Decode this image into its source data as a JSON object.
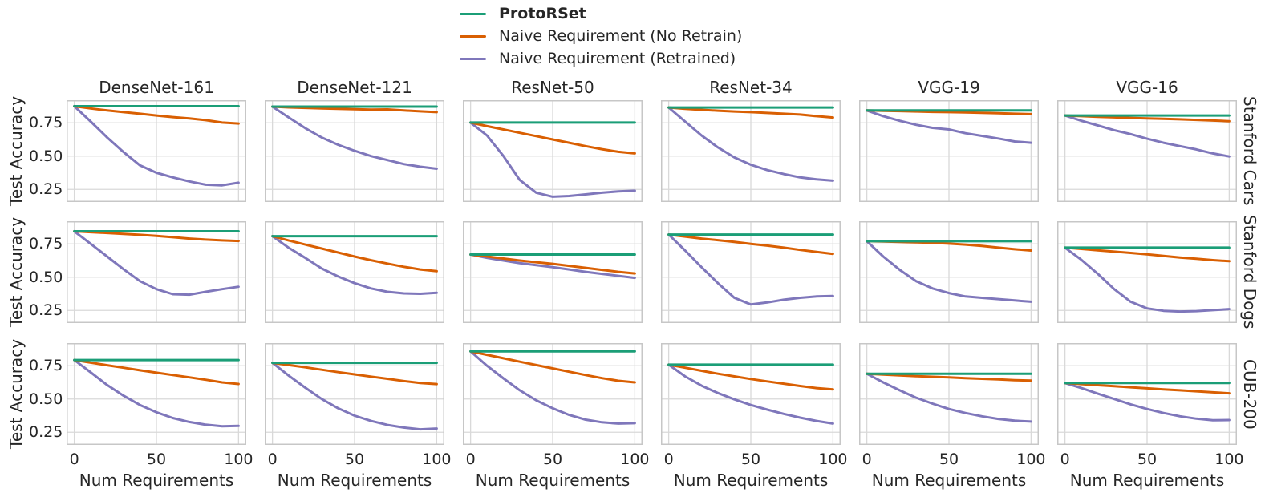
{
  "legend": {
    "items": [
      {
        "label": "ProtoRSet",
        "color": "#1b9e77",
        "bold": true
      },
      {
        "label": "Naive Requirement (No Retrain)",
        "color": "#d95f02",
        "bold": false
      },
      {
        "label": "Naive Requirement (Retrained)",
        "color": "#7f77bb",
        "bold": false
      }
    ]
  },
  "colors": {
    "protorset": "#1b9e77",
    "no_retrain": "#d95f02",
    "retrained": "#7f77bb",
    "gridline": "#d9d9d9",
    "spine": "#c7c7c7",
    "text": "#262626"
  },
  "chart_data": {
    "type": "line",
    "title": "",
    "xlabel": "Num Requirements",
    "ylabel": "Test Accuracy",
    "grid": true,
    "legend_position": "top-center",
    "rows": [
      "Stanford Cars",
      "Stanford Dogs",
      "CUB-200"
    ],
    "cols": [
      "DenseNet-161",
      "DenseNet-121",
      "ResNet-50",
      "ResNet-34",
      "VGG-19",
      "VGG-16"
    ],
    "series_names": [
      "ProtoRSet",
      "Naive Requirement (No Retrain)",
      "Naive Requirement (Retrained)"
    ],
    "xticks": [
      "0",
      "50",
      "100"
    ],
    "xtick_values": [
      0,
      50,
      100
    ],
    "yticks": [
      "0.75",
      "0.50",
      "0.25"
    ],
    "ytick_values": [
      0.75,
      0.5,
      0.25
    ],
    "xlim": [
      -4.7,
      104.7
    ],
    "ylim": [
      0.155,
      0.92
    ],
    "x": [
      0,
      10,
      20,
      30,
      40,
      50,
      60,
      70,
      80,
      90,
      100
    ],
    "subplots": [
      {
        "row": "Stanford Cars",
        "col": "DenseNet-161",
        "protorset": [
          0.875,
          0.875,
          0.875,
          0.875,
          0.875,
          0.875,
          0.875,
          0.875,
          0.875,
          0.875,
          0.875
        ],
        "no_retrain": [
          0.875,
          0.858,
          0.843,
          0.83,
          0.818,
          0.805,
          0.793,
          0.783,
          0.77,
          0.752,
          0.745
        ],
        "retrained": [
          0.875,
          0.76,
          0.64,
          0.53,
          0.43,
          0.375,
          0.34,
          0.31,
          0.285,
          0.28,
          0.3
        ]
      },
      {
        "row": "Stanford Cars",
        "col": "DenseNet-121",
        "protorset": [
          0.872,
          0.872,
          0.872,
          0.872,
          0.872,
          0.872,
          0.872,
          0.872,
          0.872,
          0.872,
          0.872
        ],
        "no_retrain": [
          0.872,
          0.866,
          0.862,
          0.858,
          0.855,
          0.852,
          0.849,
          0.851,
          0.843,
          0.836,
          0.83
        ],
        "retrained": [
          0.872,
          0.79,
          0.71,
          0.64,
          0.585,
          0.54,
          0.5,
          0.47,
          0.44,
          0.42,
          0.405
        ]
      },
      {
        "row": "Stanford Cars",
        "col": "ResNet-50",
        "protorset": [
          0.752,
          0.752,
          0.752,
          0.752,
          0.752,
          0.752,
          0.752,
          0.752,
          0.752,
          0.752,
          0.752
        ],
        "no_retrain": [
          0.752,
          0.725,
          0.7,
          0.675,
          0.65,
          0.625,
          0.6,
          0.575,
          0.552,
          0.532,
          0.52
        ],
        "retrained": [
          0.752,
          0.655,
          0.5,
          0.32,
          0.225,
          0.195,
          0.2,
          0.212,
          0.225,
          0.235,
          0.24
        ]
      },
      {
        "row": "Stanford Cars",
        "col": "ResNet-34",
        "protorset": [
          0.865,
          0.865,
          0.865,
          0.865,
          0.865,
          0.865,
          0.865,
          0.865,
          0.865,
          0.865,
          0.865
        ],
        "no_retrain": [
          0.865,
          0.855,
          0.848,
          0.841,
          0.835,
          0.83,
          0.824,
          0.818,
          0.812,
          0.8,
          0.79
        ],
        "retrained": [
          0.865,
          0.76,
          0.655,
          0.565,
          0.49,
          0.435,
          0.395,
          0.365,
          0.34,
          0.325,
          0.315
        ]
      },
      {
        "row": "Stanford Cars",
        "col": "VGG-19",
        "protorset": [
          0.843,
          0.843,
          0.843,
          0.843,
          0.843,
          0.843,
          0.843,
          0.843,
          0.843,
          0.843,
          0.843
        ],
        "no_retrain": [
          0.843,
          0.84,
          0.838,
          0.835,
          0.832,
          0.83,
          0.828,
          0.825,
          0.822,
          0.818,
          0.815
        ],
        "retrained": [
          0.843,
          0.8,
          0.765,
          0.735,
          0.712,
          0.7,
          0.672,
          0.652,
          0.632,
          0.61,
          0.6
        ]
      },
      {
        "row": "Stanford Cars",
        "col": "VGG-16",
        "protorset": [
          0.805,
          0.805,
          0.805,
          0.805,
          0.805,
          0.805,
          0.805,
          0.805,
          0.805,
          0.805,
          0.805
        ],
        "no_retrain": [
          0.805,
          0.8,
          0.795,
          0.791,
          0.787,
          0.783,
          0.78,
          0.776,
          0.772,
          0.767,
          0.762
        ],
        "retrained": [
          0.805,
          0.765,
          0.73,
          0.695,
          0.665,
          0.63,
          0.6,
          0.575,
          0.55,
          0.52,
          0.497
        ]
      },
      {
        "row": "Stanford Dogs",
        "col": "DenseNet-161",
        "protorset": [
          0.845,
          0.845,
          0.845,
          0.845,
          0.845,
          0.845,
          0.845,
          0.845,
          0.845,
          0.845,
          0.845
        ],
        "no_retrain": [
          0.845,
          0.838,
          0.832,
          0.825,
          0.818,
          0.81,
          0.8,
          0.79,
          0.782,
          0.776,
          0.772
        ],
        "retrained": [
          0.845,
          0.75,
          0.655,
          0.56,
          0.47,
          0.41,
          0.372,
          0.368,
          0.39,
          0.41,
          0.428
        ]
      },
      {
        "row": "Stanford Dogs",
        "col": "DenseNet-121",
        "protorset": [
          0.808,
          0.808,
          0.808,
          0.808,
          0.808,
          0.808,
          0.808,
          0.808,
          0.808,
          0.808,
          0.808
        ],
        "no_retrain": [
          0.808,
          0.775,
          0.745,
          0.715,
          0.685,
          0.655,
          0.627,
          0.602,
          0.578,
          0.558,
          0.545
        ],
        "retrained": [
          0.808,
          0.72,
          0.645,
          0.565,
          0.505,
          0.455,
          0.415,
          0.39,
          0.378,
          0.375,
          0.382
        ]
      },
      {
        "row": "Stanford Dogs",
        "col": "ResNet-50",
        "protorset": [
          0.67,
          0.67,
          0.67,
          0.67,
          0.67,
          0.67,
          0.67,
          0.67,
          0.67,
          0.67,
          0.67
        ],
        "no_retrain": [
          0.67,
          0.655,
          0.64,
          0.625,
          0.612,
          0.6,
          0.585,
          0.57,
          0.555,
          0.54,
          0.528
        ],
        "retrained": [
          0.67,
          0.645,
          0.625,
          0.605,
          0.59,
          0.575,
          0.558,
          0.54,
          0.525,
          0.51,
          0.495
        ]
      },
      {
        "row": "Stanford Dogs",
        "col": "ResNet-34",
        "protorset": [
          0.82,
          0.82,
          0.82,
          0.82,
          0.82,
          0.82,
          0.82,
          0.82,
          0.82,
          0.82,
          0.82
        ],
        "no_retrain": [
          0.82,
          0.805,
          0.79,
          0.778,
          0.765,
          0.75,
          0.737,
          0.722,
          0.705,
          0.69,
          0.675
        ],
        "retrained": [
          0.82,
          0.7,
          0.575,
          0.455,
          0.345,
          0.295,
          0.31,
          0.33,
          0.345,
          0.355,
          0.358
        ]
      },
      {
        "row": "Stanford Dogs",
        "col": "VGG-19",
        "protorset": [
          0.77,
          0.77,
          0.77,
          0.77,
          0.77,
          0.77,
          0.77,
          0.77,
          0.77,
          0.77,
          0.77
        ],
        "no_retrain": [
          0.77,
          0.768,
          0.765,
          0.762,
          0.758,
          0.752,
          0.745,
          0.735,
          0.722,
          0.71,
          0.7
        ],
        "retrained": [
          0.77,
          0.655,
          0.555,
          0.47,
          0.415,
          0.38,
          0.355,
          0.345,
          0.335,
          0.325,
          0.315
        ]
      },
      {
        "row": "Stanford Dogs",
        "col": "VGG-16",
        "protorset": [
          0.722,
          0.722,
          0.722,
          0.722,
          0.722,
          0.722,
          0.722,
          0.722,
          0.722,
          0.722,
          0.722
        ],
        "no_retrain": [
          0.722,
          0.712,
          0.702,
          0.692,
          0.682,
          0.672,
          0.66,
          0.648,
          0.638,
          0.628,
          0.62
        ],
        "retrained": [
          0.722,
          0.63,
          0.525,
          0.41,
          0.315,
          0.265,
          0.247,
          0.242,
          0.245,
          0.252,
          0.26
        ]
      },
      {
        "row": "CUB-200",
        "col": "DenseNet-161",
        "protorset": [
          0.793,
          0.793,
          0.793,
          0.793,
          0.793,
          0.793,
          0.793,
          0.793,
          0.793,
          0.793,
          0.793
        ],
        "no_retrain": [
          0.793,
          0.773,
          0.754,
          0.735,
          0.716,
          0.698,
          0.68,
          0.663,
          0.645,
          0.625,
          0.613
        ],
        "retrained": [
          0.793,
          0.7,
          0.605,
          0.525,
          0.455,
          0.4,
          0.357,
          0.327,
          0.307,
          0.295,
          0.298
        ]
      },
      {
        "row": "CUB-200",
        "col": "DenseNet-121",
        "protorset": [
          0.772,
          0.772,
          0.772,
          0.772,
          0.772,
          0.772,
          0.772,
          0.772,
          0.772,
          0.772,
          0.772
        ],
        "no_retrain": [
          0.772,
          0.755,
          0.738,
          0.72,
          0.702,
          0.685,
          0.668,
          0.652,
          0.635,
          0.62,
          0.612
        ],
        "retrained": [
          0.772,
          0.675,
          0.585,
          0.5,
          0.43,
          0.375,
          0.335,
          0.305,
          0.285,
          0.272,
          0.278
        ]
      },
      {
        "row": "CUB-200",
        "col": "ResNet-50",
        "protorset": [
          0.858,
          0.858,
          0.858,
          0.858,
          0.858,
          0.858,
          0.858,
          0.858,
          0.858,
          0.858,
          0.858
        ],
        "no_retrain": [
          0.858,
          0.832,
          0.806,
          0.78,
          0.755,
          0.73,
          0.705,
          0.68,
          0.657,
          0.637,
          0.625
        ],
        "retrained": [
          0.858,
          0.75,
          0.655,
          0.565,
          0.49,
          0.43,
          0.38,
          0.345,
          0.325,
          0.315,
          0.318
        ]
      },
      {
        "row": "CUB-200",
        "col": "ResNet-34",
        "protorset": [
          0.758,
          0.758,
          0.758,
          0.758,
          0.758,
          0.758,
          0.758,
          0.758,
          0.758,
          0.758,
          0.758
        ],
        "no_retrain": [
          0.758,
          0.735,
          0.712,
          0.69,
          0.67,
          0.65,
          0.632,
          0.615,
          0.598,
          0.582,
          0.572
        ],
        "retrained": [
          0.758,
          0.67,
          0.6,
          0.545,
          0.497,
          0.455,
          0.42,
          0.388,
          0.36,
          0.335,
          0.315
        ]
      },
      {
        "row": "CUB-200",
        "col": "VGG-19",
        "protorset": [
          0.69,
          0.69,
          0.69,
          0.69,
          0.69,
          0.69,
          0.69,
          0.69,
          0.69,
          0.69,
          0.69
        ],
        "no_retrain": [
          0.69,
          0.684,
          0.678,
          0.672,
          0.667,
          0.662,
          0.657,
          0.652,
          0.647,
          0.642,
          0.638
        ],
        "retrained": [
          0.69,
          0.625,
          0.565,
          0.51,
          0.465,
          0.425,
          0.395,
          0.37,
          0.35,
          0.337,
          0.33
        ]
      },
      {
        "row": "CUB-200",
        "col": "VGG-16",
        "protorset": [
          0.62,
          0.62,
          0.62,
          0.62,
          0.62,
          0.62,
          0.62,
          0.62,
          0.62,
          0.62,
          0.62
        ],
        "no_retrain": [
          0.62,
          0.612,
          0.604,
          0.596,
          0.588,
          0.58,
          0.572,
          0.565,
          0.558,
          0.55,
          0.543
        ],
        "retrained": [
          0.62,
          0.582,
          0.54,
          0.5,
          0.46,
          0.425,
          0.395,
          0.37,
          0.352,
          0.34,
          0.342
        ]
      }
    ]
  }
}
